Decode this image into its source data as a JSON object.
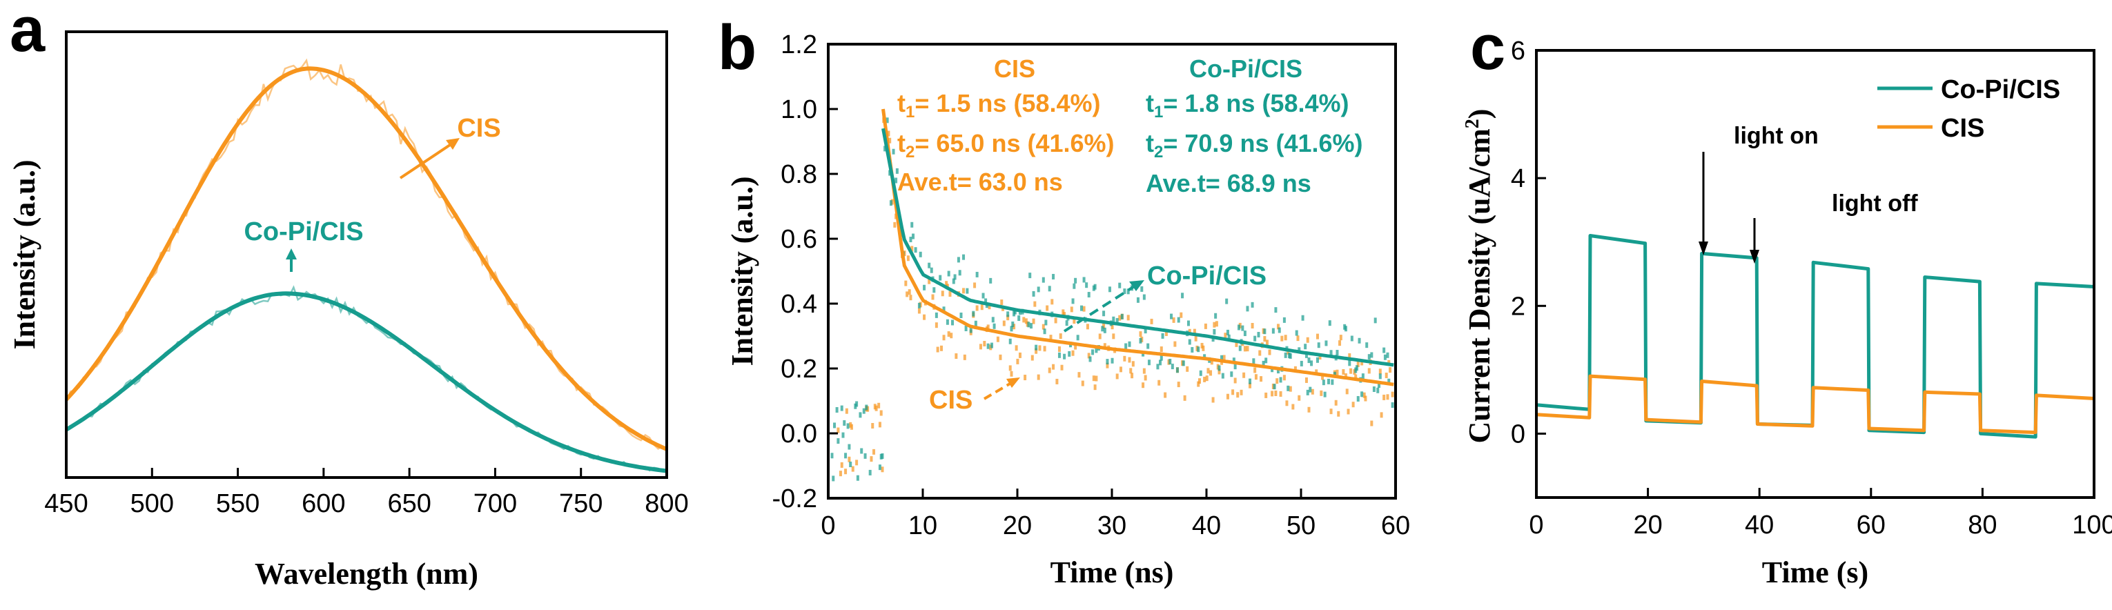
{
  "colors": {
    "orange": "#F7951D",
    "teal": "#169C8E",
    "axis": "#000000"
  },
  "chart_data": [
    {
      "type": "line",
      "panel": "a",
      "xlabel": "Wavelength (nm)",
      "ylabel": "Intensity (a.u.)",
      "xlim": [
        450,
        800
      ],
      "ylim": [
        0,
        1.09
      ],
      "xticks": [
        "450",
        "500",
        "550",
        "600",
        "650",
        "700",
        "750",
        "800"
      ],
      "yticks_shown": false,
      "series": [
        {
          "name": "CIS",
          "color": "orange",
          "peak_x": 592,
          "peak_y": 1.0,
          "sigma_left": 78,
          "sigma_right": 90,
          "noise": 0.022
        },
        {
          "name": "Co-Pi/CIS",
          "color": "teal",
          "peak_x": 578,
          "peak_y": 0.45,
          "sigma_left": 78,
          "sigma_right": 86,
          "noise": 0.012
        }
      ],
      "annotations": [
        {
          "text": "CIS",
          "color": "orange"
        },
        {
          "text": "Co-Pi/CIS",
          "color": "teal"
        }
      ]
    },
    {
      "type": "scatter",
      "panel": "b",
      "xlabel": "Time (ns)",
      "ylabel": "Intensity (a.u.)",
      "xlim": [
        0,
        60
      ],
      "ylim": [
        -0.2,
        1.2
      ],
      "xticks": [
        "0",
        "10",
        "20",
        "30",
        "40",
        "50",
        "60"
      ],
      "yticks": [
        "-0.2",
        "0.0",
        "0.2",
        "0.4",
        "0.6",
        "0.8",
        "1.0",
        "1.2"
      ],
      "series": [
        {
          "name": "CIS",
          "color": "orange",
          "t0": 5.8,
          "fit_points": [
            [
              5.8,
              1.0
            ],
            [
              8,
              0.52
            ],
            [
              10,
              0.41
            ],
            [
              15,
              0.33
            ],
            [
              20,
              0.3
            ],
            [
              30,
              0.26
            ],
            [
              40,
              0.23
            ],
            [
              50,
              0.19
            ],
            [
              60,
              0.15
            ]
          ]
        },
        {
          "name": "Co-Pi/CIS",
          "color": "teal",
          "t0": 5.8,
          "fit_points": [
            [
              5.8,
              0.94
            ],
            [
              8,
              0.6
            ],
            [
              10,
              0.49
            ],
            [
              15,
              0.41
            ],
            [
              20,
              0.38
            ],
            [
              30,
              0.34
            ],
            [
              40,
              0.3
            ],
            [
              50,
              0.25
            ],
            [
              60,
              0.21
            ]
          ]
        }
      ],
      "annotations": [
        {
          "id": "cis_title",
          "text": "CIS",
          "color": "orange"
        },
        {
          "id": "cis_t1",
          "text": "t1= 1.5 ns (58.4%)",
          "color": "orange"
        },
        {
          "id": "cis_t2",
          "text": "t2= 65.0 ns (41.6%)",
          "color": "orange"
        },
        {
          "id": "cis_ave",
          "text": "Ave.t= 63.0 ns",
          "color": "orange"
        },
        {
          "id": "copi_title",
          "text": "Co-Pi/CIS",
          "color": "teal"
        },
        {
          "id": "copi_t1",
          "text": "t1= 1.8 ns (58.4%)",
          "color": "teal"
        },
        {
          "id": "copi_t2",
          "text": "t2= 70.9 ns (41.6%)",
          "color": "teal"
        },
        {
          "id": "copi_ave",
          "text": "Ave.t= 68.9 ns",
          "color": "teal"
        },
        {
          "id": "copi_label",
          "text": "Co-Pi/CIS",
          "color": "teal"
        },
        {
          "id": "cis_label",
          "text": "CIS",
          "color": "orange"
        }
      ]
    },
    {
      "type": "line",
      "panel": "c",
      "xlabel": "Time (s)",
      "ylabel": "Current Density (uA/cm2)",
      "xlim": [
        0,
        100
      ],
      "ylim": [
        -1,
        6
      ],
      "xticks": [
        "0",
        "20",
        "40",
        "60",
        "80",
        "100"
      ],
      "yticks": [
        "0",
        "2",
        "4",
        "6"
      ],
      "legend": {
        "position": "top-right",
        "entries": [
          "Co-Pi/CIS",
          "CIS"
        ]
      },
      "light_on_times": [
        9.5,
        29.5,
        49.5,
        69.5,
        89.5
      ],
      "light_off_times": [
        19.5,
        39.5,
        59.5,
        79.5
      ],
      "series": [
        {
          "name": "Co-Pi/CIS",
          "color": "teal",
          "on_start": [
            3.1,
            2.82,
            2.68,
            2.45,
            2.35
          ],
          "on_end": [
            2.98,
            2.75,
            2.58,
            2.38,
            2.3
          ],
          "dark_start": [
            0.45,
            0.2,
            0.15,
            0.05,
            0.0
          ],
          "dark_end": [
            0.38,
            0.17,
            0.13,
            0.02,
            -0.05
          ]
        },
        {
          "name": "CIS",
          "color": "orange",
          "on_start": [
            0.9,
            0.82,
            0.72,
            0.65,
            0.6
          ],
          "on_end": [
            0.85,
            0.75,
            0.68,
            0.62,
            0.55
          ],
          "dark_start": [
            0.3,
            0.22,
            0.15,
            0.08,
            0.05
          ],
          "dark_end": [
            0.25,
            0.18,
            0.12,
            0.05,
            0.02
          ]
        }
      ],
      "annotations": [
        {
          "text": "light on"
        },
        {
          "text": "light off"
        }
      ]
    }
  ],
  "panel_labels": [
    "a",
    "b",
    "c"
  ]
}
